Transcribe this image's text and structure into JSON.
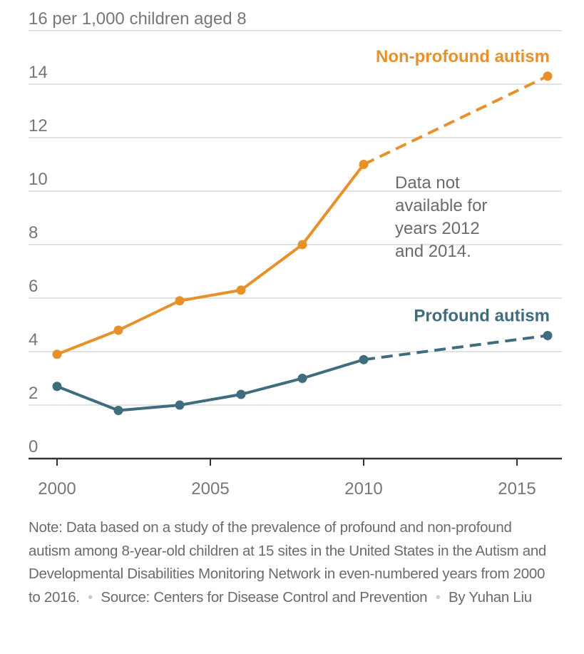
{
  "chart_data": {
    "type": "line",
    "title": "",
    "ylabel": "16 per 1,000 children aged 8",
    "y_top_tick_label": "16 per 1,000 children aged 8",
    "xlabel": "",
    "ylim": [
      0,
      16
    ],
    "xlim": [
      1999.1,
      2016.5
    ],
    "yticks": [
      0,
      2,
      4,
      6,
      8,
      10,
      12,
      14,
      16
    ],
    "ytick_labels": [
      "0",
      "2",
      "4",
      "6",
      "8",
      "10",
      "12",
      "14",
      "16 per 1,000 children aged 8"
    ],
    "xticks": [
      2000,
      2005,
      2010,
      2015
    ],
    "xtick_labels": [
      "2000",
      "2005",
      "2010",
      "2015"
    ],
    "grid": true,
    "legend": "direct labels at series ends (top-right)",
    "series": [
      {
        "name": "Non-profound autism",
        "color": "#e8912a",
        "x": [
          2000,
          2002,
          2004,
          2006,
          2008,
          2010,
          2016
        ],
        "values": [
          3.9,
          4.8,
          5.9,
          6.3,
          8.0,
          11.0,
          14.3
        ],
        "dashed_from_x": 2010
      },
      {
        "name": "Profound autism",
        "color": "#3f6d7e",
        "x": [
          2000,
          2002,
          2004,
          2006,
          2008,
          2010,
          2016
        ],
        "values": [
          2.7,
          1.8,
          2.0,
          2.4,
          3.0,
          3.7,
          4.6
        ],
        "dashed_from_x": 2010
      }
    ],
    "annotations": [
      {
        "lines": [
          "Data not",
          "available for",
          "years 2012",
          "and 2014."
        ]
      }
    ]
  },
  "footer": {
    "note": "Note: Data based on a study of the prevalence of profound and non-profound autism among 8-year-old children at 15 sites in the United States in the Autism and Developmental Disabilities Monitoring Network in even-numbered years from 2000 to 2016.",
    "separator": "•",
    "source": "Source: Centers for Disease Control and Prevention",
    "byline": "By Yuhan Liu"
  }
}
